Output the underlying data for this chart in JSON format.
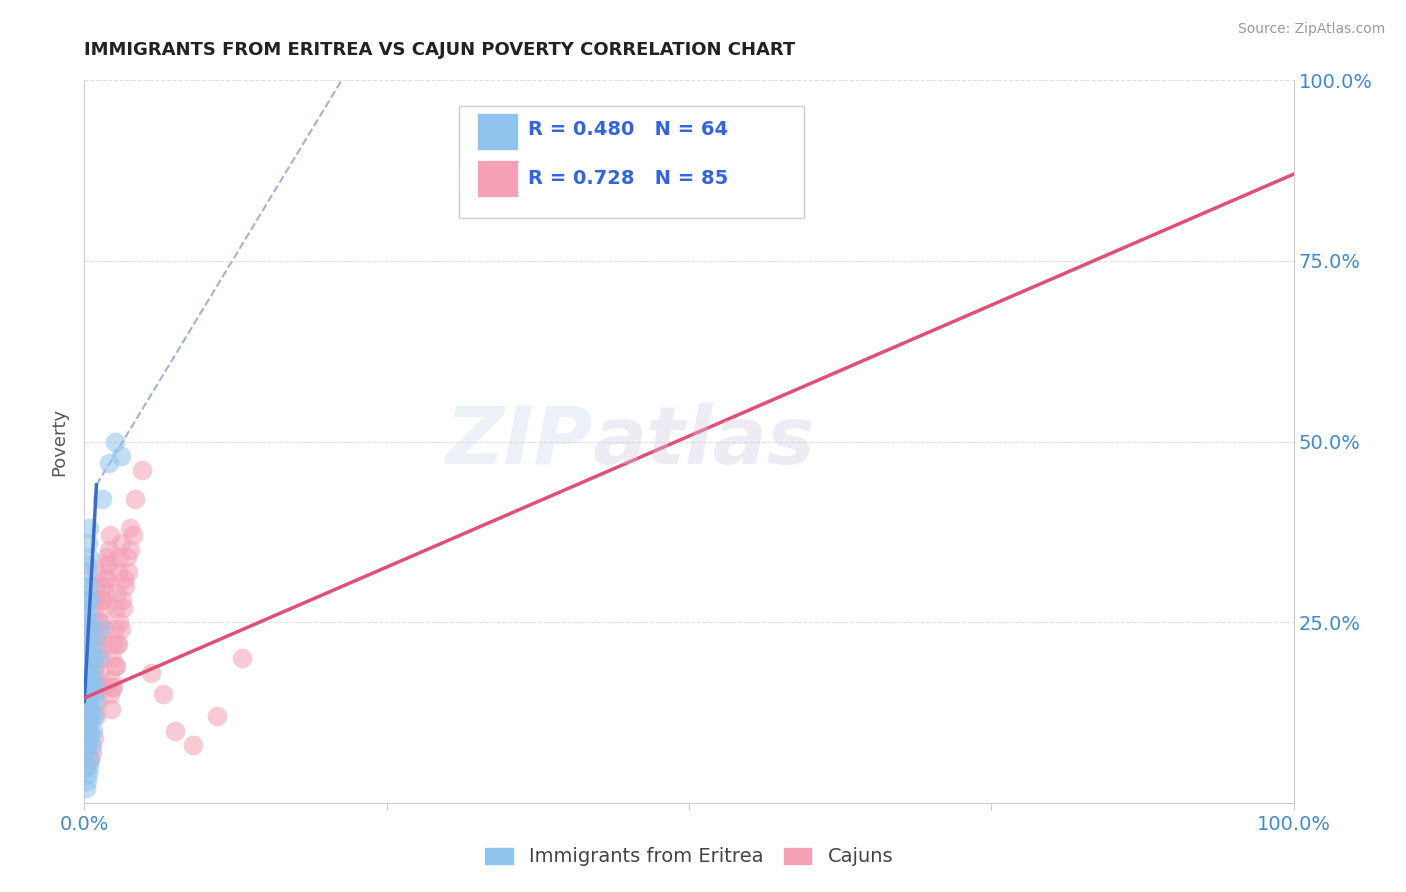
{
  "title": "IMMIGRANTS FROM ERITREA VS CAJUN POVERTY CORRELATION CHART",
  "title_fontsize": 13,
  "source_text": "Source: ZipAtlas.com",
  "ylabel": "Poverty",
  "watermark": "ZIPatlas",
  "xlim": [
    0.0,
    1.0
  ],
  "ylim": [
    0.0,
    1.0
  ],
  "legend_R_blue": "0.480",
  "legend_N_blue": "64",
  "legend_R_pink": "0.728",
  "legend_N_pink": "85",
  "blue_color": "#90C4EE",
  "pink_color": "#F4A0B5",
  "blue_line_color": "#3A6CC8",
  "pink_line_color": "#E05075",
  "dashed_line_color": "#99AACC",
  "grid_color": "#DDDDDD",
  "background_color": "#FFFFFF",
  "legend_label_blue": "Immigrants from Eritrea",
  "legend_label_pink": "Cajuns",
  "blue_scatter_x": [
    0.001,
    0.001,
    0.001,
    0.001,
    0.001,
    0.001,
    0.001,
    0.001,
    0.001,
    0.001,
    0.002,
    0.002,
    0.002,
    0.002,
    0.002,
    0.002,
    0.002,
    0.002,
    0.002,
    0.002,
    0.003,
    0.003,
    0.003,
    0.003,
    0.003,
    0.003,
    0.003,
    0.003,
    0.003,
    0.003,
    0.004,
    0.004,
    0.004,
    0.004,
    0.004,
    0.004,
    0.004,
    0.004,
    0.004,
    0.004,
    0.005,
    0.005,
    0.005,
    0.005,
    0.005,
    0.005,
    0.005,
    0.006,
    0.006,
    0.006,
    0.007,
    0.007,
    0.007,
    0.008,
    0.008,
    0.009,
    0.009,
    0.01,
    0.011,
    0.013,
    0.015,
    0.02,
    0.025,
    0.03
  ],
  "blue_scatter_y": [
    0.02,
    0.05,
    0.08,
    0.12,
    0.15,
    0.18,
    0.2,
    0.23,
    0.26,
    0.3,
    0.03,
    0.07,
    0.1,
    0.13,
    0.16,
    0.19,
    0.22,
    0.25,
    0.28,
    0.33,
    0.04,
    0.08,
    0.11,
    0.14,
    0.18,
    0.21,
    0.24,
    0.28,
    0.32,
    0.36,
    0.05,
    0.09,
    0.12,
    0.16,
    0.19,
    0.22,
    0.26,
    0.3,
    0.34,
    0.38,
    0.06,
    0.1,
    0.14,
    0.17,
    0.2,
    0.24,
    0.28,
    0.08,
    0.12,
    0.16,
    0.1,
    0.15,
    0.2,
    0.12,
    0.18,
    0.14,
    0.22,
    0.16,
    0.2,
    0.24,
    0.42,
    0.47,
    0.5,
    0.48
  ],
  "pink_scatter_x": [
    0.001,
    0.002,
    0.003,
    0.004,
    0.005,
    0.006,
    0.007,
    0.008,
    0.009,
    0.01,
    0.011,
    0.012,
    0.013,
    0.014,
    0.015,
    0.016,
    0.017,
    0.018,
    0.019,
    0.02,
    0.021,
    0.022,
    0.023,
    0.024,
    0.025,
    0.026,
    0.027,
    0.028,
    0.029,
    0.03,
    0.002,
    0.004,
    0.006,
    0.008,
    0.01,
    0.012,
    0.014,
    0.016,
    0.018,
    0.02,
    0.022,
    0.024,
    0.026,
    0.028,
    0.03,
    0.032,
    0.034,
    0.036,
    0.038,
    0.04,
    0.003,
    0.005,
    0.007,
    0.009,
    0.011,
    0.013,
    0.015,
    0.017,
    0.019,
    0.021,
    0.023,
    0.025,
    0.027,
    0.029,
    0.031,
    0.033,
    0.035,
    0.038,
    0.042,
    0.048,
    0.055,
    0.065,
    0.075,
    0.09,
    0.11,
    0.13,
    0.001,
    0.002,
    0.003,
    0.004,
    0.005,
    0.006,
    0.008,
    0.01,
    0.015
  ],
  "pink_scatter_y": [
    0.14,
    0.16,
    0.18,
    0.2,
    0.22,
    0.24,
    0.26,
    0.28,
    0.3,
    0.32,
    0.14,
    0.16,
    0.18,
    0.2,
    0.22,
    0.24,
    0.27,
    0.29,
    0.31,
    0.33,
    0.15,
    0.17,
    0.2,
    0.22,
    0.24,
    0.27,
    0.29,
    0.32,
    0.34,
    0.36,
    0.12,
    0.15,
    0.18,
    0.2,
    0.23,
    0.25,
    0.28,
    0.3,
    0.33,
    0.35,
    0.13,
    0.16,
    0.19,
    0.22,
    0.24,
    0.27,
    0.3,
    0.32,
    0.35,
    0.37,
    0.1,
    0.13,
    0.16,
    0.19,
    0.22,
    0.25,
    0.28,
    0.31,
    0.34,
    0.37,
    0.16,
    0.19,
    0.22,
    0.25,
    0.28,
    0.31,
    0.34,
    0.38,
    0.42,
    0.46,
    0.18,
    0.15,
    0.1,
    0.08,
    0.12,
    0.2,
    0.05,
    0.08,
    0.1,
    0.12,
    0.06,
    0.07,
    0.09,
    0.12,
    0.16
  ],
  "blue_regline_x": [
    0.0,
    0.01
  ],
  "blue_regline_y": [
    0.14,
    0.44
  ],
  "blue_dashline_x": [
    0.01,
    0.22
  ],
  "blue_dashline_y": [
    0.44,
    1.02
  ],
  "pink_regline_x": [
    0.0,
    1.0
  ],
  "pink_regline_y": [
    0.145,
    0.87
  ]
}
